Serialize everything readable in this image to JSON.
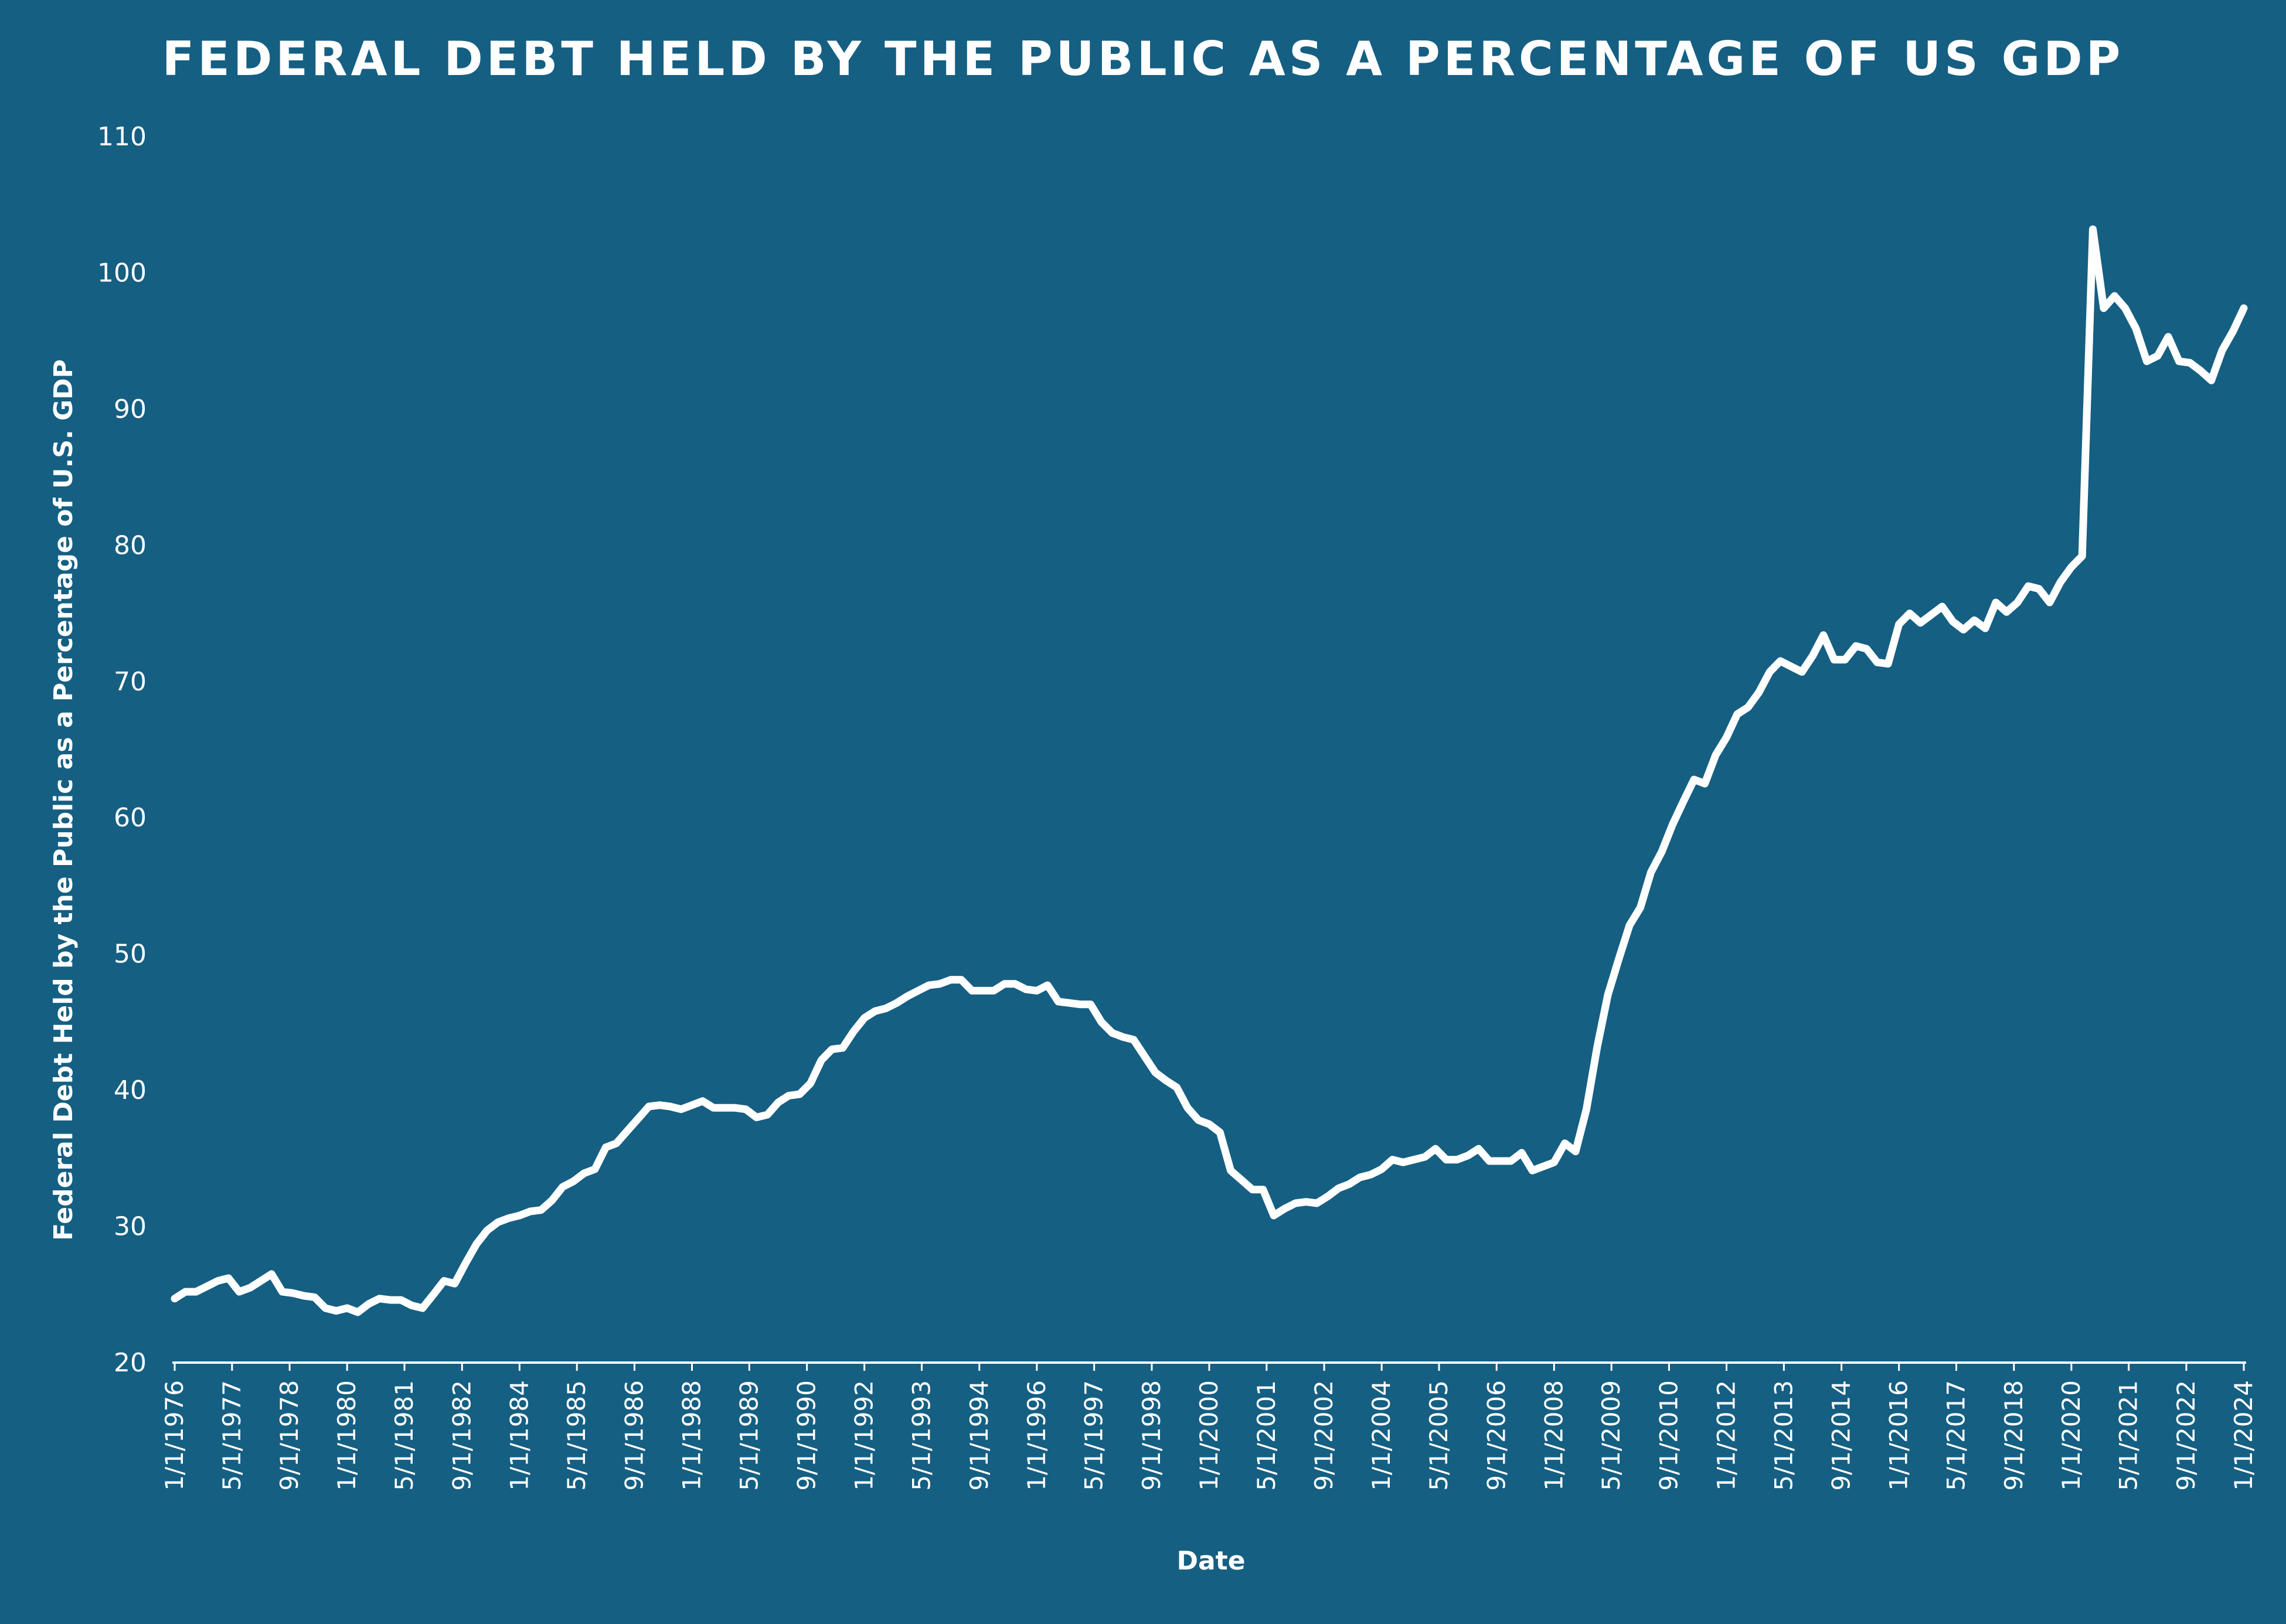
{
  "chart_data": {
    "type": "area",
    "title": "FEDERAL DEBT HELD BY THE PUBLIC AS A PERCENTAGE OF US GDP",
    "xlabel": "Date",
    "ylabel": "Federal Debt Held by the Public as a Percentage of U.S. GDP",
    "ylim": [
      20,
      110
    ],
    "yticks": [
      20,
      30,
      40,
      50,
      60,
      70,
      80,
      90,
      100,
      110
    ],
    "xlim": [
      "1/1/1976",
      "1/1/2024"
    ],
    "xtick_labels": [
      "1/1/1976",
      "5/1/1977",
      "9/1/1978",
      "1/1/1980",
      "5/1/1981",
      "9/1/1982",
      "1/1/1984",
      "5/1/1985",
      "9/1/1986",
      "1/1/1988",
      "5/1/1989",
      "9/1/1990",
      "1/1/1992",
      "5/1/1993",
      "9/1/1994",
      "1/1/1996",
      "5/1/1997",
      "9/1/1998",
      "1/1/2000",
      "5/1/2001",
      "9/1/2002",
      "1/1/2004",
      "5/1/2005",
      "9/1/2006",
      "1/1/2008",
      "5/1/2009",
      "9/1/2010",
      "1/1/2012",
      "5/1/2013",
      "9/1/2014",
      "1/1/2016",
      "5/1/2017",
      "9/1/2018",
      "1/1/2020",
      "5/1/2021",
      "9/1/2022",
      "1/1/2024"
    ],
    "grid": false,
    "series": [
      {
        "points": [
          [
            "1/1/1976",
            24.7
          ],
          [
            "4/1/1976",
            25.2
          ],
          [
            "7/1/1976",
            25.2
          ],
          [
            "10/1/1976",
            25.6
          ],
          [
            "1/1/1977",
            26.0
          ],
          [
            "4/1/1977",
            26.2
          ],
          [
            "7/1/1977",
            25.2
          ],
          [
            "10/1/1977",
            25.5
          ],
          [
            "1/1/1978",
            26.0
          ],
          [
            "4/1/1978",
            26.5
          ],
          [
            "7/1/1978",
            25.2
          ],
          [
            "10/1/1978",
            25.1
          ],
          [
            "1/1/1979",
            24.9
          ],
          [
            "4/1/1979",
            24.8
          ],
          [
            "7/1/1979",
            24.0
          ],
          [
            "10/1/1979",
            23.8
          ],
          [
            "1/1/1980",
            24.0
          ],
          [
            "4/1/1980",
            23.7
          ],
          [
            "7/1/1980",
            24.3
          ],
          [
            "10/1/1980",
            24.7
          ],
          [
            "1/1/1981",
            24.6
          ],
          [
            "4/1/1981",
            24.6
          ],
          [
            "7/1/1981",
            24.2
          ],
          [
            "10/1/1981",
            24.0
          ],
          [
            "1/1/1982",
            25.0
          ],
          [
            "4/1/1982",
            26.0
          ],
          [
            "7/1/1982",
            25.8
          ],
          [
            "10/1/1982",
            27.3
          ],
          [
            "1/1/1983",
            28.7
          ],
          [
            "4/1/1983",
            29.7
          ],
          [
            "7/1/1983",
            30.3
          ],
          [
            "10/1/1983",
            30.6
          ],
          [
            "1/1/1984",
            30.8
          ],
          [
            "4/1/1984",
            31.1
          ],
          [
            "7/1/1984",
            31.2
          ],
          [
            "10/1/1984",
            31.9
          ],
          [
            "1/1/1985",
            32.9
          ],
          [
            "4/1/1985",
            33.3
          ],
          [
            "7/1/1985",
            33.9
          ],
          [
            "10/1/1985",
            34.2
          ],
          [
            "1/1/1986",
            35.8
          ],
          [
            "4/1/1986",
            36.1
          ],
          [
            "7/1/1986",
            37.0
          ],
          [
            "10/1/1986",
            37.9
          ],
          [
            "1/1/1987",
            38.8
          ],
          [
            "4/1/1987",
            38.9
          ],
          [
            "7/1/1987",
            38.8
          ],
          [
            "10/1/1987",
            38.6
          ],
          [
            "1/1/1988",
            38.9
          ],
          [
            "4/1/1988",
            39.2
          ],
          [
            "7/1/1988",
            38.7
          ],
          [
            "10/1/1988",
            38.7
          ],
          [
            "1/1/1989",
            38.7
          ],
          [
            "4/1/1989",
            38.6
          ],
          [
            "7/1/1989",
            38.0
          ],
          [
            "10/1/1989",
            38.2
          ],
          [
            "1/1/1990",
            39.1
          ],
          [
            "4/1/1990",
            39.6
          ],
          [
            "7/1/1990",
            39.7
          ],
          [
            "10/1/1990",
            40.5
          ],
          [
            "1/1/1991",
            42.2
          ],
          [
            "4/1/1991",
            43.0
          ],
          [
            "7/1/1991",
            43.1
          ],
          [
            "10/1/1991",
            44.3
          ],
          [
            "1/1/1992",
            45.3
          ],
          [
            "4/1/1992",
            45.8
          ],
          [
            "7/1/1992",
            46.0
          ],
          [
            "10/1/1992",
            46.4
          ],
          [
            "1/1/1993",
            46.9
          ],
          [
            "4/1/1993",
            47.3
          ],
          [
            "7/1/1993",
            47.7
          ],
          [
            "10/1/1993",
            47.8
          ],
          [
            "1/1/1994",
            48.1
          ],
          [
            "4/1/1994",
            48.1
          ],
          [
            "7/1/1994",
            47.3
          ],
          [
            "10/1/1994",
            47.3
          ],
          [
            "1/1/1995",
            47.3
          ],
          [
            "4/1/1995",
            47.8
          ],
          [
            "7/1/1995",
            47.8
          ],
          [
            "10/1/1995",
            47.4
          ],
          [
            "1/1/1996",
            47.3
          ],
          [
            "4/1/1996",
            47.7
          ],
          [
            "7/1/1996",
            46.5
          ],
          [
            "10/1/1996",
            46.4
          ],
          [
            "1/1/1997",
            46.3
          ],
          [
            "4/1/1997",
            46.3
          ],
          [
            "7/1/1997",
            45.0
          ],
          [
            "10/1/1997",
            44.2
          ],
          [
            "1/1/1998",
            43.9
          ],
          [
            "4/1/1998",
            43.7
          ],
          [
            "7/1/1998",
            42.5
          ],
          [
            "10/1/1998",
            41.3
          ],
          [
            "1/1/1999",
            40.7
          ],
          [
            "4/1/1999",
            40.2
          ],
          [
            "7/1/1999",
            38.7
          ],
          [
            "10/1/1999",
            37.8
          ],
          [
            "1/1/2000",
            37.5
          ],
          [
            "4/1/2000",
            36.9
          ],
          [
            "7/1/2000",
            34.1
          ],
          [
            "10/1/2000",
            33.4
          ],
          [
            "1/1/2001",
            32.7
          ],
          [
            "4/1/2001",
            32.7
          ],
          [
            "7/1/2001",
            30.8
          ],
          [
            "10/1/2001",
            31.3
          ],
          [
            "1/1/2002",
            31.7
          ],
          [
            "4/1/2002",
            31.8
          ],
          [
            "7/1/2002",
            31.7
          ],
          [
            "10/1/2002",
            32.2
          ],
          [
            "1/1/2003",
            32.8
          ],
          [
            "4/1/2003",
            33.1
          ],
          [
            "7/1/2003",
            33.6
          ],
          [
            "10/1/2003",
            33.8
          ],
          [
            "1/1/2004",
            34.2
          ],
          [
            "4/1/2004",
            34.9
          ],
          [
            "7/1/2004",
            34.7
          ],
          [
            "10/1/2004",
            34.9
          ],
          [
            "1/1/2005",
            35.1
          ],
          [
            "4/1/2005",
            35.7
          ],
          [
            "7/1/2005",
            34.9
          ],
          [
            "10/1/2005",
            34.9
          ],
          [
            "1/1/2006",
            35.2
          ],
          [
            "4/1/2006",
            35.7
          ],
          [
            "7/1/2006",
            34.8
          ],
          [
            "10/1/2006",
            34.8
          ],
          [
            "1/1/2007",
            34.8
          ],
          [
            "4/1/2007",
            35.4
          ],
          [
            "7/1/2007",
            34.1
          ],
          [
            "10/1/2007",
            34.4
          ],
          [
            "1/1/2008",
            34.7
          ],
          [
            "4/1/2008",
            36.1
          ],
          [
            "7/1/2008",
            35.5
          ],
          [
            "10/1/2008",
            38.6
          ],
          [
            "1/1/2009",
            43.2
          ],
          [
            "4/1/2009",
            47.0
          ],
          [
            "7/1/2009",
            49.6
          ],
          [
            "10/1/2009",
            52.1
          ],
          [
            "1/1/2010",
            53.4
          ],
          [
            "4/1/2010",
            56.0
          ],
          [
            "7/1/2010",
            57.5
          ],
          [
            "10/1/2010",
            59.5
          ],
          [
            "1/1/2011",
            61.2
          ],
          [
            "4/1/2011",
            62.8
          ],
          [
            "7/1/2011",
            62.5
          ],
          [
            "10/1/2011",
            64.6
          ],
          [
            "1/1/2012",
            65.9
          ],
          [
            "4/1/2012",
            67.6
          ],
          [
            "7/1/2012",
            68.1
          ],
          [
            "10/1/2012",
            69.2
          ],
          [
            "1/1/2013",
            70.7
          ],
          [
            "4/1/2013",
            71.5
          ],
          [
            "7/1/2013",
            71.1
          ],
          [
            "10/1/2013",
            70.7
          ],
          [
            "1/1/2014",
            71.9
          ],
          [
            "4/1/2014",
            73.4
          ],
          [
            "7/1/2014",
            71.6
          ],
          [
            "10/1/2014",
            71.6
          ],
          [
            "1/1/2015",
            72.6
          ],
          [
            "4/1/2015",
            72.4
          ],
          [
            "7/1/2015",
            71.4
          ],
          [
            "10/1/2015",
            71.3
          ],
          [
            "1/1/2016",
            74.2
          ],
          [
            "4/1/2016",
            75.0
          ],
          [
            "7/1/2016",
            74.3
          ],
          [
            "10/1/2016",
            74.9
          ],
          [
            "1/1/2017",
            75.5
          ],
          [
            "4/1/2017",
            74.4
          ],
          [
            "7/1/2017",
            73.8
          ],
          [
            "10/1/2017",
            74.5
          ],
          [
            "1/1/2018",
            73.9
          ],
          [
            "4/1/2018",
            75.8
          ],
          [
            "7/1/2018",
            75.1
          ],
          [
            "10/1/2018",
            75.8
          ],
          [
            "1/1/2019",
            77.0
          ],
          [
            "4/1/2019",
            76.8
          ],
          [
            "7/1/2019",
            75.8
          ],
          [
            "10/1/2019",
            77.3
          ],
          [
            "1/1/2020",
            78.4
          ],
          [
            "4/1/2020",
            79.2
          ],
          [
            "7/1/2020",
            103.2
          ],
          [
            "10/1/2020",
            97.4
          ],
          [
            "1/1/2021",
            98.3
          ],
          [
            "4/1/2021",
            97.4
          ],
          [
            "7/1/2021",
            95.9
          ],
          [
            "10/1/2021",
            93.5
          ],
          [
            "1/1/2022",
            93.9
          ],
          [
            "4/1/2022",
            95.3
          ],
          [
            "7/1/2022",
            93.5
          ],
          [
            "10/1/2022",
            93.4
          ],
          [
            "1/1/2023",
            92.8
          ],
          [
            "4/1/2023",
            92.1
          ],
          [
            "7/1/2023",
            94.3
          ],
          [
            "10/1/2023",
            95.7
          ],
          [
            "1/1/2024",
            97.4
          ]
        ]
      }
    ]
  },
  "colors": {
    "background": "#155f83",
    "line": "#ffffff",
    "text": "#ffffff"
  }
}
